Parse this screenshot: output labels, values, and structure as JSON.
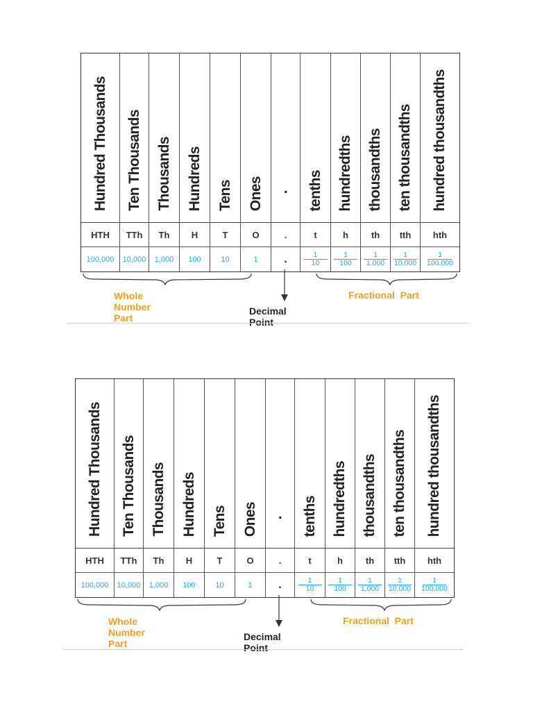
{
  "place_value_chart": {
    "columns": [
      {
        "name": "Hundred Thousands",
        "abbr": "HTH",
        "value": "100,000"
      },
      {
        "name": "Ten Thousands",
        "abbr": "TTh",
        "value": "10,000"
      },
      {
        "name": "Thousands",
        "abbr": "Th",
        "value": "1,000"
      },
      {
        "name": "Hundreds",
        "abbr": "H",
        "value": "100"
      },
      {
        "name": "Tens",
        "abbr": "T",
        "value": "10"
      },
      {
        "name": "Ones",
        "abbr": "O",
        "value": "1"
      },
      {
        "name": ".",
        "abbr": ".",
        "value": "."
      },
      {
        "name": "tenths",
        "abbr": "t",
        "numerator": "1",
        "denominator": "10"
      },
      {
        "name": "hundredths",
        "abbr": "h",
        "numerator": "1",
        "denominator": "100"
      },
      {
        "name": "thousandths",
        "abbr": "th",
        "numerator": "1",
        "denominator": "1,000"
      },
      {
        "name": "ten thousandths",
        "abbr": "tth",
        "numerator": "1",
        "denominator": "10,000"
      },
      {
        "name": "hundred thousandths",
        "abbr": "hth",
        "numerator": "1",
        "denominator": "100,000"
      }
    ],
    "whole_label": "Whole Number Part",
    "fraction_label": "Fractional  Part",
    "decimal_label": "Decimal Point"
  },
  "colors": {
    "label_orange": "#e9a023",
    "value_blue": "#22a7e6",
    "divider": "#9fd8f0"
  }
}
